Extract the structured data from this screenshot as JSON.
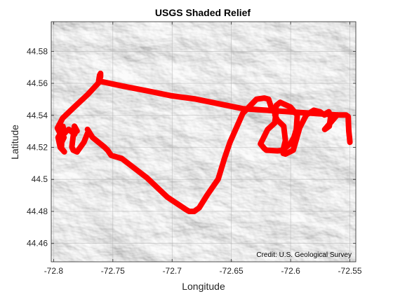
{
  "chart_data": {
    "type": "line",
    "title": "USGS Shaded Relief",
    "xlabel": "Longitude",
    "ylabel": "Latitude",
    "xlim": [
      -72.802,
      -72.545
    ],
    "ylim": [
      44.4485,
      44.5985
    ],
    "xticks": [
      -72.8,
      -72.75,
      -72.7,
      -72.65,
      -72.6,
      -72.55
    ],
    "xtick_labels": [
      "-72.8",
      "-72.75",
      "-72.7",
      "-72.65",
      "-72.6",
      "-72.55"
    ],
    "yticks": [
      44.46,
      44.48,
      44.5,
      44.52,
      44.54,
      44.56,
      44.58
    ],
    "ytick_labels": [
      "44.46",
      "44.48",
      "44.5",
      "44.52",
      "44.54",
      "44.56",
      "44.58"
    ],
    "grid": true,
    "basemap": "USGS Shaded Relief",
    "credit": "Credit: U.S. Geological Survey",
    "series_color": "#ff0000",
    "series": [
      {
        "lon": [
          -72.7612,
          -72.7604,
          -72.7604,
          -72.7612,
          -72.7622,
          -72.7712,
          -72.7814,
          -72.7862,
          -72.7924,
          -72.7968,
          -72.7942,
          -72.7912,
          -72.7932,
          -72.7934,
          -72.7909,
          -72.7944,
          -72.7962,
          -72.7924,
          -72.7921,
          -72.7909,
          -72.7891,
          -72.7872,
          -72.7822,
          -72.7812,
          -72.7802,
          -72.7824,
          -72.7841,
          -72.7846,
          -72.7834,
          -72.7802,
          -72.7744,
          -72.7706,
          -72.7714,
          -72.7672,
          -72.7572,
          -72.7544,
          -72.7514,
          -72.7424,
          -72.7212,
          -72.7042,
          -72.6882,
          -72.6856,
          -72.6814,
          -72.6772,
          -72.6704,
          -72.6611,
          -72.6558,
          -72.6512,
          -72.6404,
          -72.6288,
          -72.6221,
          -72.6186,
          -72.6156,
          -72.6124,
          -72.6134,
          -72.6194,
          -72.6254,
          -72.6221,
          -72.6204,
          -72.6112,
          -72.6064,
          -72.6044,
          -72.6058,
          -72.6114,
          -72.6132,
          -72.6121,
          -72.6088,
          -72.6002,
          -72.5944,
          -72.5952,
          -72.5972,
          -72.6004,
          -72.6052,
          -72.6062,
          -72.6044,
          -72.5978,
          -72.5924,
          -72.5868,
          -72.5804,
          -72.5752,
          -72.5714,
          -72.5702,
          -72.5678,
          -72.5662,
          -72.5674,
          -72.5712,
          -72.5608,
          -72.5532,
          -72.5514,
          -72.5512,
          -72.5509,
          -72.5506,
          -72.5503,
          -72.5501,
          -72.55
        ],
        "lat": [
          44.562,
          44.5642,
          44.5662,
          44.565,
          44.5602,
          44.553,
          44.546,
          44.5426,
          44.5382,
          44.532,
          44.5282,
          44.5262,
          44.5232,
          44.5196,
          44.5172,
          44.52,
          44.5262,
          44.5312,
          44.5331,
          44.5286,
          44.5302,
          44.5312,
          44.5282,
          44.5302,
          44.5302,
          44.5332,
          44.5232,
          44.5202,
          44.5182,
          44.5172,
          44.5232,
          44.5302,
          44.5312,
          44.5262,
          44.5202,
          44.5182,
          44.515,
          44.513,
          44.501,
          44.489,
          44.4811,
          44.48,
          44.48,
          44.4822,
          44.4902,
          44.5002,
          44.5132,
          44.5232,
          44.5412,
          44.5501,
          44.5508,
          44.5501,
          44.5432,
          44.5412,
          44.5352,
          44.5312,
          44.5222,
          44.5192,
          44.5182,
          44.5178,
          44.5182,
          44.5242,
          44.5332,
          44.5372,
          44.5402,
          44.5462,
          44.5481,
          44.5452,
          44.5402,
          44.5312,
          44.5262,
          44.5222,
          44.5192,
          44.5162,
          44.5158,
          44.5182,
          44.5322,
          44.5402,
          44.5432,
          44.5422,
          44.5402,
          44.5412,
          44.5422,
          44.5392,
          44.5332,
          44.5312,
          44.5402,
          44.5402,
          44.5392,
          44.5352,
          44.5302,
          44.5282,
          44.5262,
          44.5242,
          44.5232
        ],
        "continuation_lon": [
          -72.7604,
          -72.7412,
          -72.7204,
          -72.7004,
          -72.6804,
          -72.6604,
          -72.6404,
          -72.6204,
          -72.6004,
          -72.5804,
          -72.5604
        ],
        "continuation_lat": [
          44.5612,
          44.5582,
          44.5552,
          44.5522,
          44.5502,
          44.5472,
          44.5442,
          44.5432,
          44.5422,
          44.5412,
          44.5402
        ]
      }
    ]
  }
}
